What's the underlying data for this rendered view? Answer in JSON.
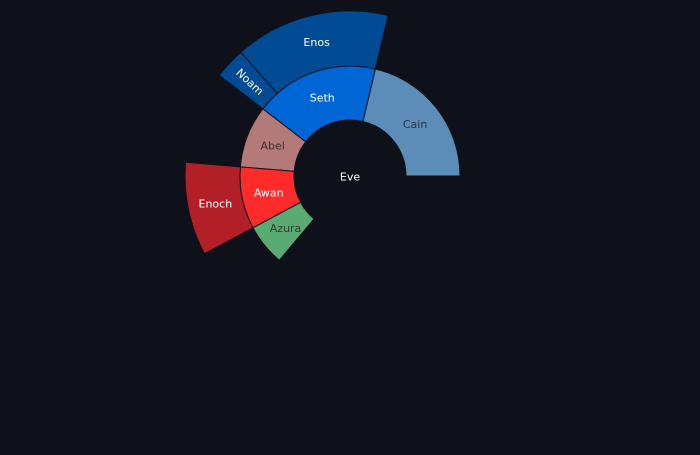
{
  "chart_data": {
    "type": "sunburst",
    "center_label": "Eve",
    "center_color": "#0f111a",
    "center_text_color": "#ffffff",
    "border_color": "#0f111a",
    "nodes": [
      {
        "id": "cain",
        "label": "Cain",
        "parent": "Eve",
        "value": 14,
        "color": "#5b8db8",
        "text_color": "#2e3440"
      },
      {
        "id": "seth",
        "label": "Seth",
        "parent": "Eve",
        "value": 12,
        "color": "#0066d6",
        "text_color": "#ffffff"
      },
      {
        "id": "enos",
        "label": "Enos",
        "parent": "Seth",
        "value": 10,
        "color": "#004b94",
        "text_color": "#ffffff"
      },
      {
        "id": "noam",
        "label": "Noam",
        "parent": "Seth",
        "value": 2,
        "color": "#004b94",
        "text_color": "#ffffff"
      },
      {
        "id": "abel",
        "label": "Abel",
        "parent": "Eve",
        "value": 6,
        "color": "#b47a7a",
        "text_color": "#3a2e2e"
      },
      {
        "id": "awan",
        "label": "Awan",
        "parent": "Eve",
        "value": 6,
        "color": "#ff2b2b",
        "text_color": "#ffffff"
      },
      {
        "id": "enoch",
        "label": "Enoch",
        "parent": "Awan",
        "value": 6,
        "color": "#b21f26",
        "text_color": "#ffffff"
      },
      {
        "id": "azura",
        "label": "Azura",
        "parent": "Eve",
        "value": 4,
        "color": "#5aaa73",
        "text_color": "#2e3a30"
      }
    ]
  }
}
